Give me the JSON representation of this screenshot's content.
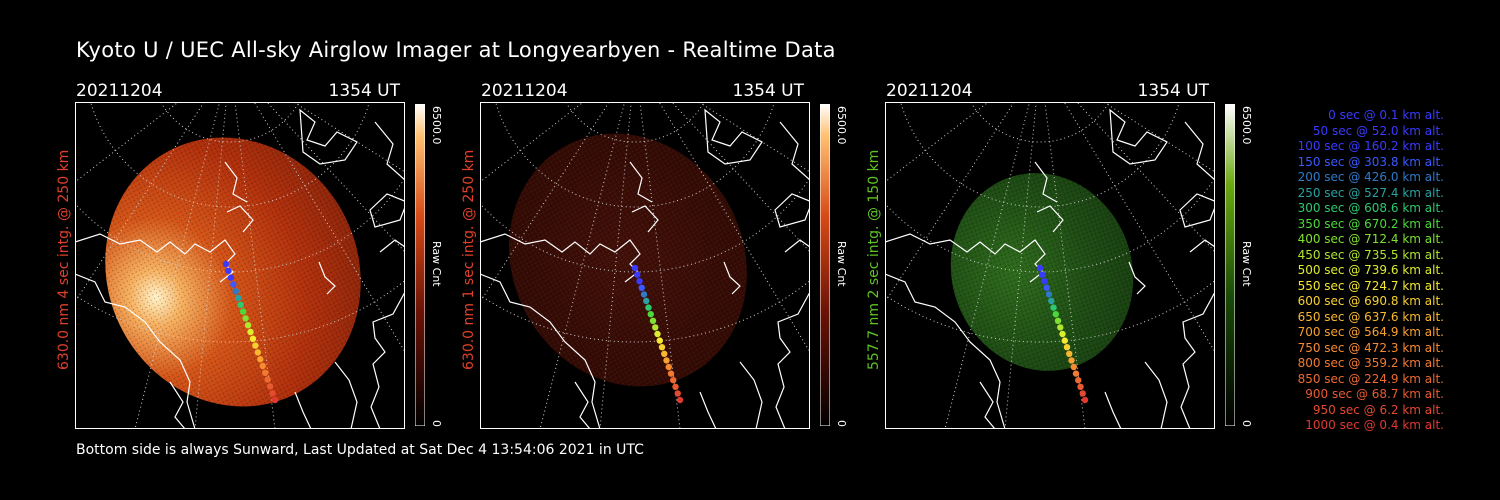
{
  "title": "Kyoto U / UEC All-sky Airglow Imager at Longyearbyen - Realtime Data",
  "footer": "Bottom side is always Sunward, Last Updated at Sat Dec  4 13:54:06 2021 in UTC",
  "panels": [
    {
      "date": "20211204",
      "time": "1354 UT",
      "ylabel": "630.0 nm 4 sec intg. @ 250 km",
      "color": "#e0402a",
      "cb_max": "6500.0",
      "cb_min": "0",
      "cb_label": "Raw Cnt"
    },
    {
      "date": "20211204",
      "time": "1354 UT",
      "ylabel": "630.0 nm 1 sec intg. @ 250 km",
      "color": "#e0402a",
      "cb_max": "6500.0",
      "cb_min": "0",
      "cb_label": "Raw Cnt"
    },
    {
      "date": "20211204",
      "time": "1354 UT",
      "ylabel": "557.7 nm 2 sec intg. @ 150 km",
      "color": "#5ec422",
      "cb_max": "6500.0",
      "cb_min": "0",
      "cb_label": "Raw Cnt"
    }
  ],
  "legend": [
    {
      "text": "0 sec @    0.1 km alt.",
      "color": "#3a3aff"
    },
    {
      "text": "50 sec @   52.0 km alt.",
      "color": "#3a3aff"
    },
    {
      "text": "100 sec @  160.2 km alt.",
      "color": "#3a3aff"
    },
    {
      "text": "150 sec @  303.8 km alt.",
      "color": "#3a5aff"
    },
    {
      "text": "200 sec @  426.0 km alt.",
      "color": "#2f7ac8"
    },
    {
      "text": "250 sec @  527.4 km alt.",
      "color": "#2aa0a0"
    },
    {
      "text": "300 sec @  608.6 km alt.",
      "color": "#2ec870"
    },
    {
      "text": "350 sec @  670.2 km alt.",
      "color": "#4ad83a"
    },
    {
      "text": "400 sec @  712.4 km alt.",
      "color": "#7ee030"
    },
    {
      "text": "450 sec @  735.5 km alt.",
      "color": "#b0e630"
    },
    {
      "text": "500 sec @  739.6 km alt.",
      "color": "#dcec30"
    },
    {
      "text": "550 sec @  724.7 km alt.",
      "color": "#f4e830"
    },
    {
      "text": "600 sec @  690.8 km alt.",
      "color": "#f8d030"
    },
    {
      "text": "650 sec @  637.6 km alt.",
      "color": "#f8b830"
    },
    {
      "text": "700 sec @  564.9 km alt.",
      "color": "#f8a030"
    },
    {
      "text": "750 sec @  472.3 km alt.",
      "color": "#f88a30"
    },
    {
      "text": "800 sec @  359.2 km alt.",
      "color": "#f27a30"
    },
    {
      "text": "850 sec @  224.9 km alt.",
      "color": "#ec6a30"
    },
    {
      "text": "900 sec @   68.7 km alt.",
      "color": "#e85a30"
    },
    {
      "text": "950 sec @    6.2 km alt.",
      "color": "#e44a30"
    },
    {
      "text": "1000 sec @    0.4 km alt.",
      "color": "#e03a30"
    }
  ]
}
